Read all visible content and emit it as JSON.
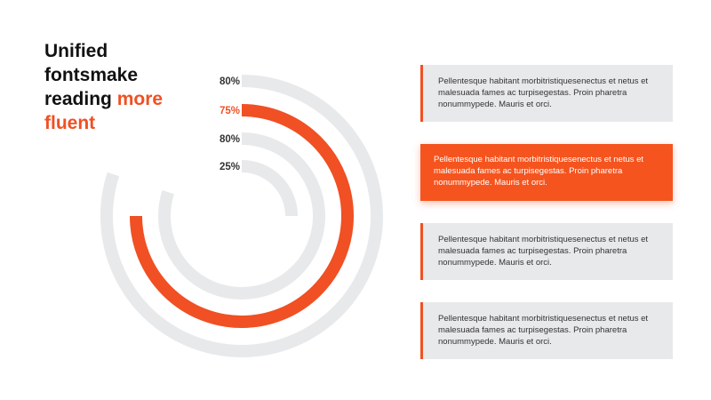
{
  "title": {
    "line1": "Unified",
    "line2": "fontsmake",
    "line3_plain": "reading",
    "line3_accent": "more",
    "line4_accent": "fluent"
  },
  "colors": {
    "accent": "#f05023",
    "track": "#e8e9eb",
    "label_dark": "#333333"
  },
  "chart_data": {
    "type": "radial-bar",
    "series": [
      {
        "label": "80%",
        "value": 80,
        "highlight": false
      },
      {
        "label": "75%",
        "value": 75,
        "highlight": true
      },
      {
        "label": "80%",
        "value": 80,
        "highlight": false
      },
      {
        "label": "25%",
        "value": 25,
        "highlight": false
      }
    ]
  },
  "boxes": [
    {
      "text": "Pellentesque habitant morbitristiquesenectus et netus et malesuada fames ac turpisegestas. Proin pharetra nonummypede. Mauris et orci.",
      "active": false
    },
    {
      "text": "Pellentesque habitant morbitristiquesenectus et netus et malesuada fames ac turpisegestas. Proin pharetra nonummypede. Mauris et orci.",
      "active": true
    },
    {
      "text": "Pellentesque habitant morbitristiquesenectus et netus et malesuada fames ac turpisegestas. Proin pharetra nonummypede. Mauris et orci.",
      "active": false
    },
    {
      "text": "Pellentesque habitant morbitristiquesenectus et netus et malesuada fames ac turpisegestas. Proin pharetra nonummypede. Mauris et orci.",
      "active": false
    }
  ]
}
